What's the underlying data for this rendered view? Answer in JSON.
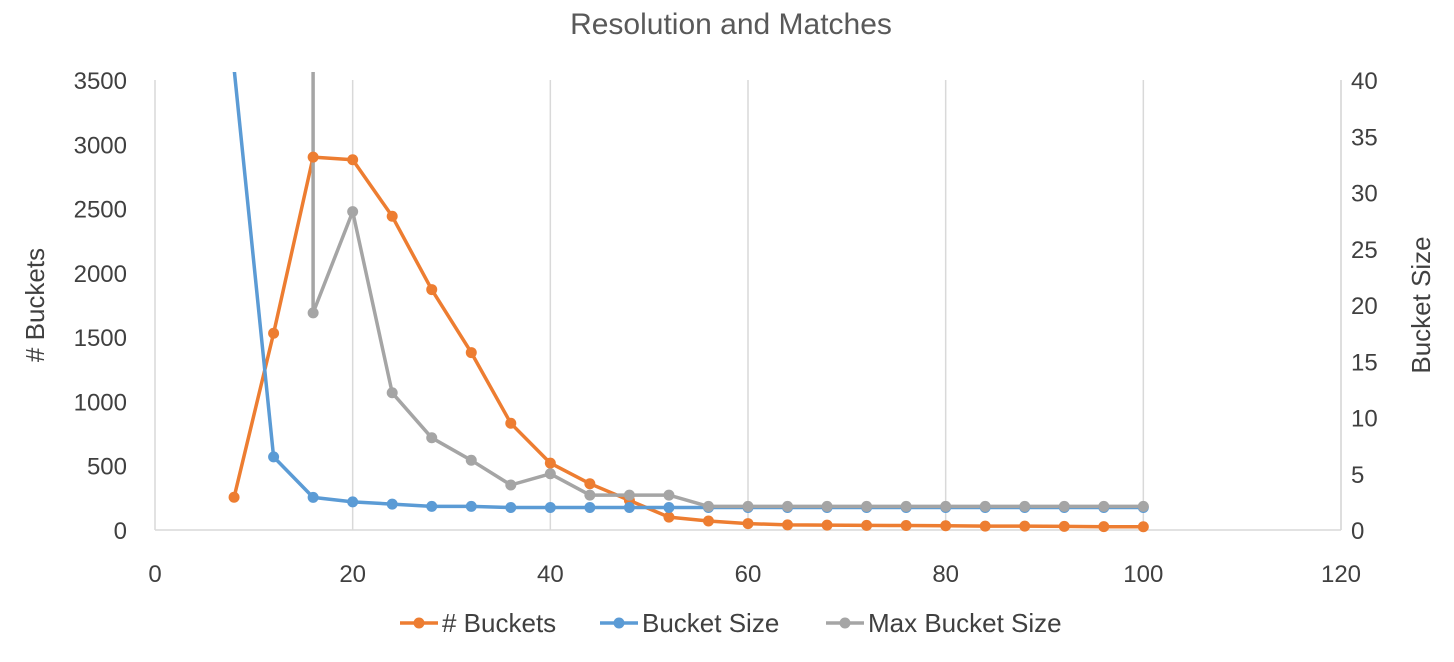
{
  "chart_data": {
    "type": "line",
    "title": "Resolution and Matches",
    "xlabel": "",
    "ylabel": "# Buckets",
    "y2label": "Bucket Size",
    "xlim": [
      0,
      120
    ],
    "ylim": [
      0,
      3500
    ],
    "y2lim": [
      0,
      40
    ],
    "xticks": [
      "0",
      "20",
      "40",
      "60",
      "80",
      "100",
      "120"
    ],
    "yticks": [
      "0",
      "500",
      "1000",
      "1500",
      "2000",
      "2500",
      "3000",
      "3500"
    ],
    "y2ticks": [
      "0",
      "5",
      "10",
      "15",
      "20",
      "25",
      "30",
      "35",
      "40"
    ],
    "grid": "vertical",
    "legend_position": "bottom",
    "series": [
      {
        "name": "# Buckets",
        "axis": "left",
        "color": "#ed7d31",
        "x": [
          8,
          12,
          16,
          20,
          24,
          28,
          32,
          36,
          40,
          44,
          48,
          52,
          56,
          60,
          64,
          68,
          72,
          76,
          80,
          84,
          88,
          92,
          96,
          100
        ],
        "y": [
          255,
          1530,
          2900,
          2880,
          2440,
          1870,
          1380,
          830,
          520,
          360,
          230,
          100,
          70,
          50,
          40,
          38,
          36,
          35,
          33,
          30,
          30,
          28,
          26,
          25
        ]
      },
      {
        "name": "Bucket Size",
        "axis": "right",
        "color": "#5b9bd5",
        "x": [
          8,
          12,
          16,
          20,
          24,
          28,
          32,
          36,
          40,
          44,
          48,
          52,
          56,
          60,
          64,
          68,
          72,
          76,
          80,
          84,
          88,
          92,
          96,
          100
        ],
        "y": [
          41,
          6.5,
          2.9,
          2.5,
          2.3,
          2.1,
          2.1,
          2.0,
          2.0,
          2.0,
          2.0,
          2.0,
          2.0,
          2.0,
          2.0,
          2.0,
          2.0,
          2.0,
          2.0,
          2.0,
          2.0,
          2.0,
          2.0,
          2.0
        ]
      },
      {
        "name": "Max Bucket Size",
        "axis": "right",
        "color": "#a5a5a5",
        "x": [
          16,
          16,
          20,
          24,
          28,
          32,
          36,
          40,
          44,
          48,
          52,
          56,
          60,
          64,
          68,
          72,
          76,
          80,
          84,
          88,
          92,
          96,
          100
        ],
        "y": [
          41,
          19.3,
          28.3,
          12.2,
          8.2,
          6.2,
          4.0,
          5.0,
          3.1,
          3.1,
          3.1,
          2.1,
          2.1,
          2.1,
          2.1,
          2.1,
          2.1,
          2.1,
          2.1,
          2.1,
          2.1,
          2.1,
          2.1
        ]
      }
    ]
  }
}
